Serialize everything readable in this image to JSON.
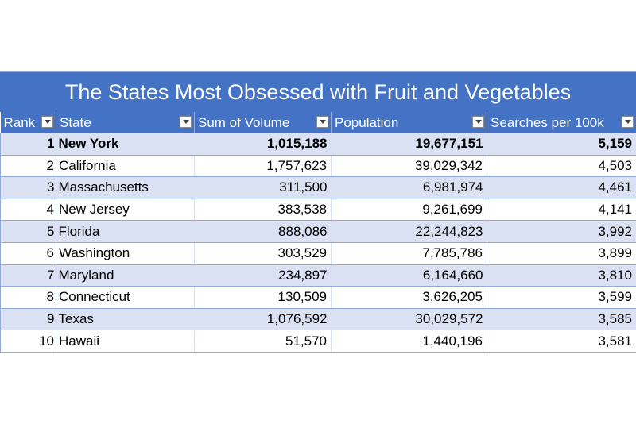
{
  "title": "The States Most Obsessed with Fruit and Vegetables",
  "headers": [
    "Rank",
    "State",
    "Sum of Volume",
    "Population",
    "Searches per 100k"
  ],
  "filter_icon": "dropdown-filter-icon",
  "colors": {
    "header_bg": "#4472C4",
    "band_bg": "#D9E1F2",
    "border": "#8EA9DB"
  },
  "rows": [
    {
      "rank": "1",
      "state": "New York",
      "volume": "1,015,188",
      "population": "19,677,151",
      "searches": "5,159"
    },
    {
      "rank": "2",
      "state": "California",
      "volume": "1,757,623",
      "population": "39,029,342",
      "searches": "4,503"
    },
    {
      "rank": "3",
      "state": "Massachusetts",
      "volume": "311,500",
      "population": "6,981,974",
      "searches": "4,461"
    },
    {
      "rank": "4",
      "state": "New Jersey",
      "volume": "383,538",
      "population": "9,261,699",
      "searches": "4,141"
    },
    {
      "rank": "5",
      "state": "Florida",
      "volume": "888,086",
      "population": "22,244,823",
      "searches": "3,992"
    },
    {
      "rank": "6",
      "state": "Washington",
      "volume": "303,529",
      "population": "7,785,786",
      "searches": "3,899"
    },
    {
      "rank": "7",
      "state": "Maryland",
      "volume": "234,897",
      "population": "6,164,660",
      "searches": "3,810"
    },
    {
      "rank": "8",
      "state": "Connecticut",
      "volume": "130,509",
      "population": "3,626,205",
      "searches": "3,599"
    },
    {
      "rank": "9",
      "state": "Texas",
      "volume": "1,076,592",
      "population": "30,029,572",
      "searches": "3,585"
    },
    {
      "rank": "10",
      "state": "Hawaii",
      "volume": "51,570",
      "population": "1,440,196",
      "searches": "3,581"
    }
  ]
}
